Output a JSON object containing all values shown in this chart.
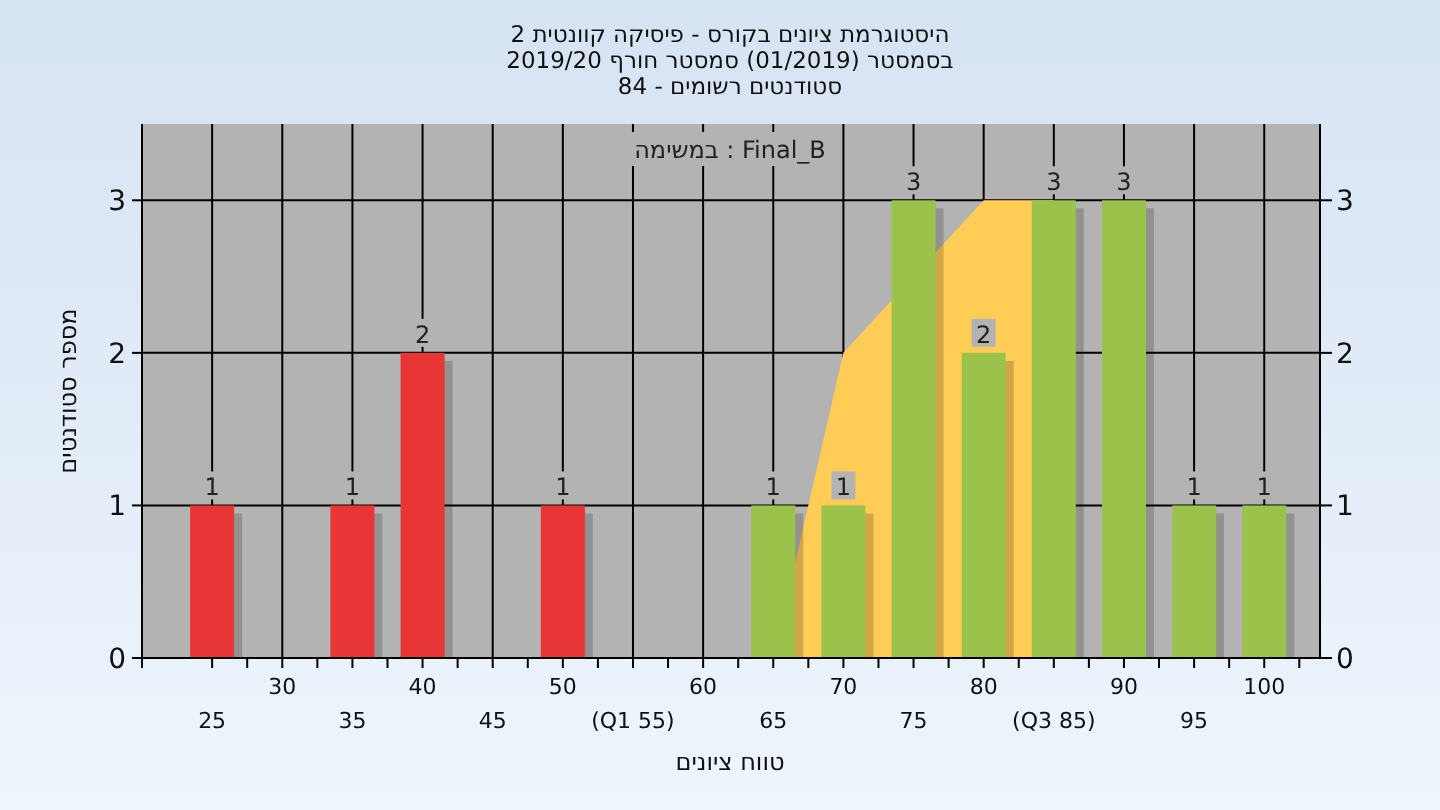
{
  "chart_data": {
    "type": "bar",
    "title": "היסטוגרמת ציונים בקורס - פיסיקה קוונטית 2",
    "subtitle": "בסמסטר  (01/2019)  סמסטר חורף 2019/20\nסטודנטים רשומים - 84",
    "xlabel": "טווח ציונים",
    "ylabel": "מספר סטודנטים",
    "annotations": [
      "במשימה : Final_B"
    ],
    "categories": [
      "25",
      "30",
      "35",
      "40",
      "45",
      "50",
      "(Q1 55)",
      "60",
      "65",
      "70",
      "75",
      "80",
      "(Q3 85)",
      "90",
      "95",
      "100"
    ],
    "series": [
      {
        "type": "area",
        "color": "#ffcc55",
        "values": [
          null,
          null,
          null,
          null,
          null,
          null,
          null,
          null,
          0,
          2,
          null,
          3,
          3,
          null,
          null,
          null
        ]
      },
      {
        "colors": [
          "#e83535",
          "#e83535",
          "#e83535",
          "#e83535",
          "#e83535",
          "#e83535",
          "#e83535",
          "#e83535",
          "#9bc34b",
          "#9bc34b",
          "#9bc34b",
          "#9bc34b",
          "#9bc34b",
          "#9bc34b",
          "#9bc34b",
          "#9bc34b"
        ],
        "values": [
          1,
          0,
          1,
          2,
          0,
          1,
          0,
          0,
          1,
          1,
          3,
          2,
          3,
          3,
          1,
          1
        ],
        "value_labels": [
          "1",
          null,
          "1",
          "2",
          null,
          "1",
          null,
          null,
          "1",
          "1",
          "3",
          "2",
          "3",
          "3",
          "1",
          "1"
        ]
      }
    ],
    "ylim": [
      0,
      3.5
    ],
    "yticks": [
      0,
      1,
      2,
      3
    ],
    "y2lim": [
      0,
      3.5
    ],
    "y2ticks": [
      0,
      1,
      2,
      3
    ],
    "grid": true
  }
}
